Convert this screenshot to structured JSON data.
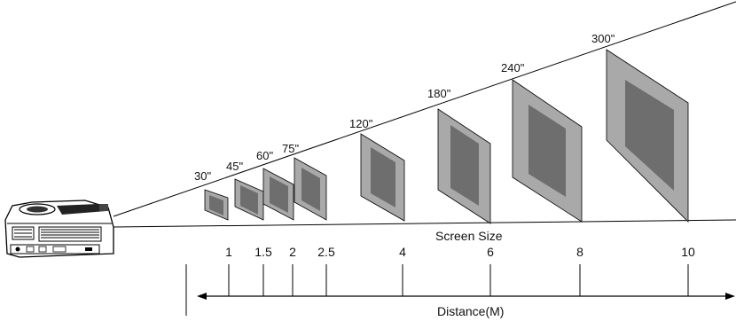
{
  "screen_sizes": [
    "30\"",
    "45\"",
    "60\"",
    "75\"",
    "120\"",
    "180\"",
    "240\"",
    "300\""
  ],
  "screen_size_caption": "Screen Size",
  "distance_ticks": [
    "1",
    "1.5",
    "2",
    "2.5",
    "4",
    "6",
    "8",
    "10"
  ],
  "distance_caption": "Distance(M)",
  "colors": {
    "screen_outer": "#a9a9a9",
    "screen_inner": "#6e6e6e",
    "line": "#000000"
  }
}
